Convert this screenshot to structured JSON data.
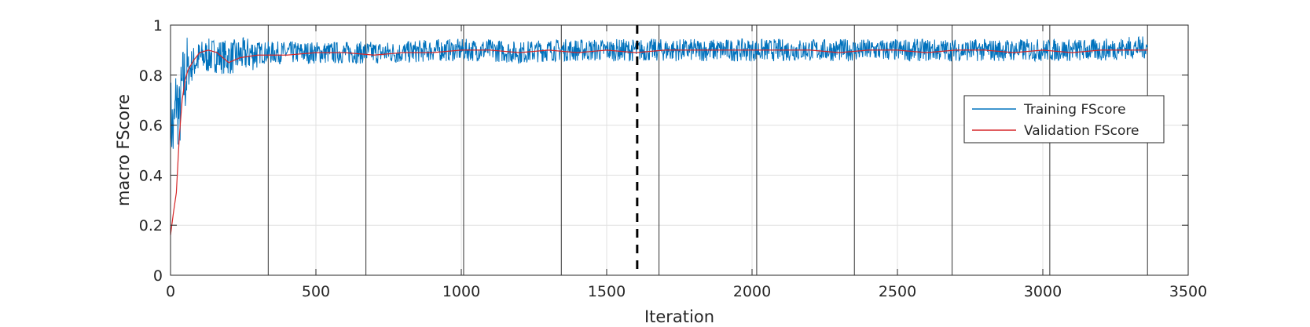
{
  "chart_data": {
    "type": "line",
    "title": "",
    "xlabel": "Iteration",
    "ylabel": "macro FScore",
    "xlim": [
      0,
      3500
    ],
    "ylim": [
      0,
      1
    ],
    "xticks": [
      0,
      500,
      1000,
      1500,
      2000,
      2500,
      3000,
      3500
    ],
    "xtick_labels": [
      "0",
      "500",
      "1000",
      "1500",
      "2000",
      "2500",
      "3000",
      "3500"
    ],
    "yticks": [
      0,
      0.2,
      0.4,
      0.6,
      0.8,
      1
    ],
    "ytick_labels": [
      "0",
      "0.2",
      "0.4",
      "0.6",
      "0.8",
      "1"
    ],
    "grid": true,
    "legend": {
      "location": "right",
      "entries": [
        "Training FScore",
        "Validation FScore"
      ]
    },
    "colors": {
      "training": "#0072bd",
      "validation": "#d62728",
      "epoch_lines": "#333333",
      "best_line": "#000000",
      "grid": "#e0e0e0"
    },
    "epoch_boundaries": [
      336,
      672,
      1008,
      1344,
      1680,
      2016,
      2352,
      2688,
      3024,
      3360
    ],
    "best_iteration": 1605,
    "series": [
      {
        "name": "Training FScore",
        "color": "#0072bd",
        "description_x_step": 20,
        "x": [
          0,
          10,
          20,
          30,
          40,
          60,
          80,
          100,
          150,
          200,
          250,
          300,
          400,
          500,
          600,
          700,
          800,
          900,
          1000,
          1100,
          1200,
          1300,
          1400,
          1500,
          1600,
          1700,
          1800,
          1900,
          2000,
          2100,
          2200,
          2300,
          2400,
          2500,
          2600,
          2700,
          2800,
          2900,
          3000,
          3100,
          3200,
          3300,
          3360
        ],
        "y": [
          0.65,
          0.55,
          0.72,
          0.62,
          0.75,
          0.82,
          0.85,
          0.87,
          0.88,
          0.87,
          0.88,
          0.89,
          0.89,
          0.89,
          0.89,
          0.89,
          0.89,
          0.9,
          0.9,
          0.9,
          0.89,
          0.9,
          0.9,
          0.9,
          0.9,
          0.9,
          0.9,
          0.9,
          0.9,
          0.9,
          0.9,
          0.9,
          0.9,
          0.9,
          0.9,
          0.9,
          0.9,
          0.9,
          0.9,
          0.9,
          0.9,
          0.91,
          0.91
        ],
        "noise_amplitude": 0.045
      },
      {
        "name": "Validation FScore",
        "color": "#d62728",
        "x": [
          0,
          10,
          20,
          30,
          40,
          50,
          60,
          80,
          100,
          130,
          160,
          200,
          240,
          300,
          400,
          500,
          600,
          700,
          800,
          900,
          1000,
          1100,
          1200,
          1300,
          1400,
          1500,
          1600,
          1700,
          1800,
          1900,
          2000,
          2100,
          2200,
          2300,
          2400,
          2500,
          2600,
          2700,
          2800,
          2900,
          3000,
          3100,
          3200,
          3300,
          3360
        ],
        "y": [
          0.16,
          0.25,
          0.33,
          0.55,
          0.7,
          0.78,
          0.82,
          0.86,
          0.89,
          0.9,
          0.89,
          0.85,
          0.87,
          0.88,
          0.88,
          0.89,
          0.89,
          0.88,
          0.89,
          0.89,
          0.9,
          0.9,
          0.89,
          0.9,
          0.89,
          0.9,
          0.89,
          0.9,
          0.9,
          0.9,
          0.9,
          0.9,
          0.9,
          0.89,
          0.9,
          0.9,
          0.89,
          0.9,
          0.9,
          0.89,
          0.9,
          0.89,
          0.9,
          0.9,
          0.9
        ]
      }
    ]
  }
}
